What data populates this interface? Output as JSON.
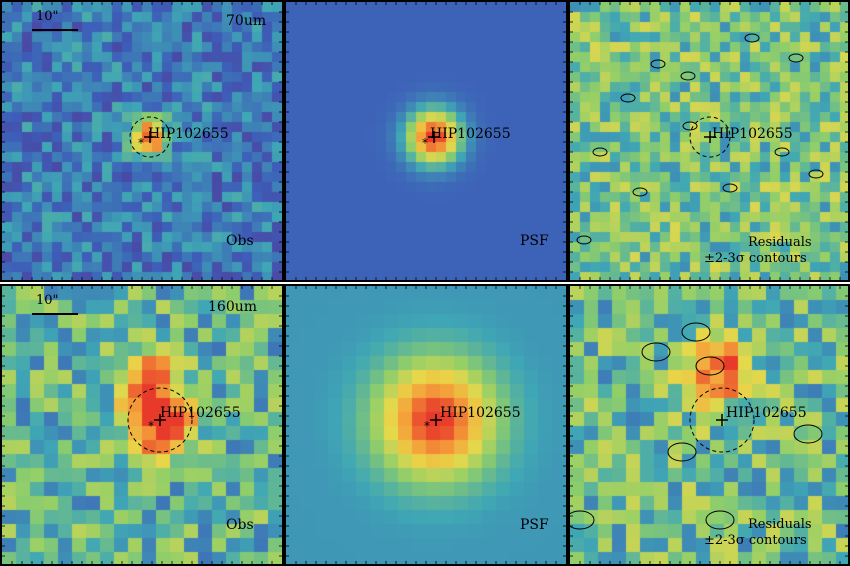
{
  "target": "HIP102655",
  "rows": [
    {
      "id": "row-70um",
      "band": "70um",
      "panels": [
        {
          "id": "obs",
          "kind": "obs",
          "label": "Obs",
          "scale_bar": "10\"",
          "band_label": "70um",
          "colormap": "cool",
          "circle": true
        },
        {
          "id": "psf",
          "kind": "psf",
          "label": "PSF",
          "colormap": "flat"
        },
        {
          "id": "residual",
          "kind": "residual",
          "label": "Residuals",
          "label2": "±2-3σ contours",
          "colormap": "mid",
          "circle": true
        }
      ]
    },
    {
      "id": "row-160um",
      "band": "160um",
      "panels": [
        {
          "id": "obs",
          "kind": "obs",
          "label": "Obs",
          "scale_bar": "10\"",
          "band_label": "160um",
          "colormap": "mid",
          "circle": true
        },
        {
          "id": "psf",
          "kind": "psf",
          "label": "PSF",
          "colormap": "soft"
        },
        {
          "id": "residual",
          "kind": "residual",
          "label": "Residuals",
          "label2": "±2-3σ contours",
          "colormap": "mid",
          "circle": true
        }
      ]
    }
  ],
  "colors": {
    "deep": "#5a2f8a",
    "blue": "#3d5db8",
    "teal": "#3fa6b5",
    "green": "#8fce6a",
    "yellow": "#e8d84a",
    "orange": "#f4a13a",
    "red": "#e83a2a"
  }
}
